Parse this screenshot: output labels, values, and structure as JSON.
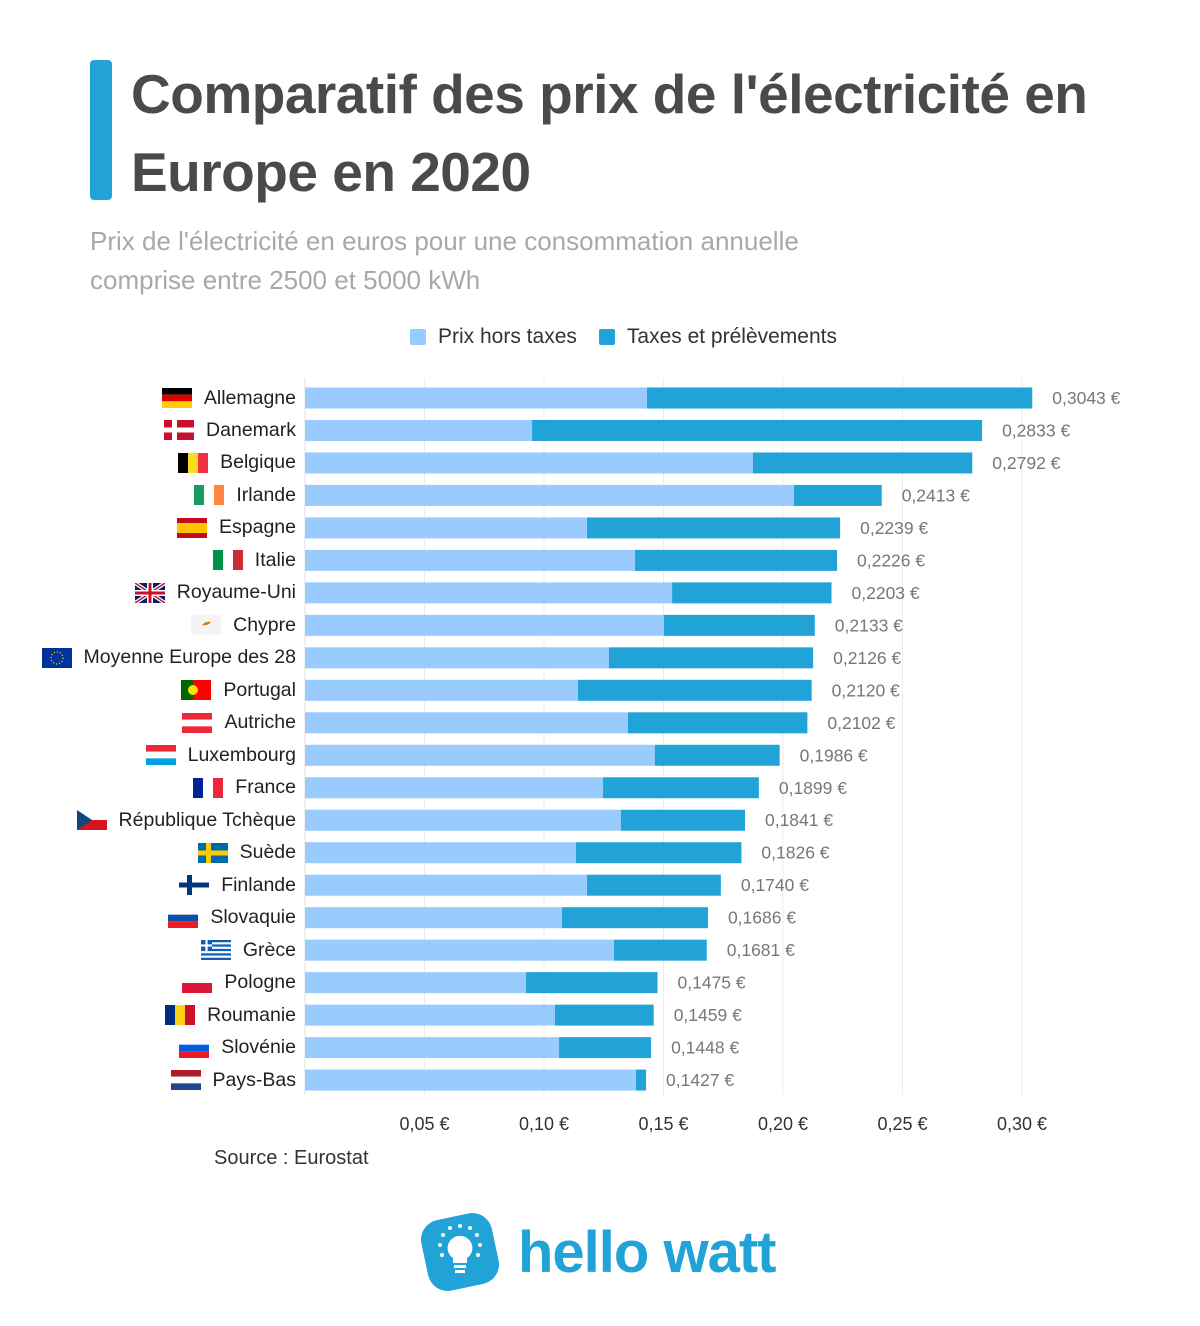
{
  "header": {
    "title": "Comparatif des prix de l'électricité en Europe en 2020",
    "subtitle": "Prix de l'électricité en euros pour une consommation annuelle comprise entre 2500 et 5000 kWh"
  },
  "chart_data": {
    "type": "bar",
    "orientation": "horizontal",
    "stacked": true,
    "title": "Comparatif des prix de l'électricité en Europe en 2020",
    "categories": [
      "Allemagne",
      "Danemark",
      "Belgique",
      "Irlande",
      "Espagne",
      "Italie",
      "Royaume-Uni",
      "Chypre",
      "Moyenne Europe des 28",
      "Portugal",
      "Autriche",
      "Luxembourg",
      "France",
      "République Tchèque",
      "Suède",
      "Finlande",
      "Slovaquie",
      "Grèce",
      "Pologne",
      "Roumanie",
      "Slovénie",
      "Pays-Bas"
    ],
    "series": [
      {
        "name": "Prix hors taxes",
        "color": "#99cbff",
        "values": [
          0.1431,
          0.095,
          0.1874,
          0.2046,
          0.118,
          0.1381,
          0.1536,
          0.1502,
          0.1272,
          0.1142,
          0.1351,
          0.1464,
          0.1247,
          0.1322,
          0.1134,
          0.118,
          0.1075,
          0.1293,
          0.0925,
          0.1046,
          0.1063,
          0.1385
        ]
      },
      {
        "name": "Taxes et prélèvements",
        "color": "#22a3d8",
        "values": [
          0.1612,
          0.1883,
          0.0918,
          0.0367,
          0.1059,
          0.0845,
          0.0667,
          0.0631,
          0.0854,
          0.0978,
          0.0751,
          0.0522,
          0.0652,
          0.0519,
          0.0692,
          0.056,
          0.0611,
          0.0388,
          0.055,
          0.0413,
          0.0385,
          0.0042
        ]
      }
    ],
    "totals": [
      0.3043,
      0.2833,
      0.2792,
      0.2413,
      0.2239,
      0.2226,
      0.2203,
      0.2133,
      0.2126,
      0.212,
      0.2102,
      0.1986,
      0.1899,
      0.1841,
      0.1826,
      0.174,
      0.1686,
      0.1681,
      0.1475,
      0.1459,
      0.1448,
      0.1427
    ],
    "data_labels": [
      "0,3043 €",
      "0,2833 €",
      "0,2792 €",
      "0,2413 €",
      "0,2239 €",
      "0,2226 €",
      "0,2203 €",
      "0,2133 €",
      "0,2126 €",
      "0,2120 €",
      "0,2102 €",
      "0,1986 €",
      "0,1899 €",
      "0,1841 €",
      "0,1826 €",
      "0,1740 €",
      "0,1686 €",
      "0,1681 €",
      "0,1475 €",
      "0,1459 €",
      "0,1448 €",
      "0,1427 €"
    ],
    "xlim": [
      0,
      0.32
    ],
    "x_ticks": [
      0.05,
      0.1,
      0.15,
      0.2,
      0.25,
      0.3
    ],
    "x_tick_labels": [
      "0,05 €",
      "0,10 €",
      "0,15 €",
      "0,20 €",
      "0,25 €",
      "0,30 €"
    ],
    "grid": true,
    "legend_position": "top",
    "xlabel": "",
    "ylabel": ""
  },
  "flags": [
    {
      "dir": "h",
      "colors": [
        "#000000",
        "#dd0000",
        "#ffce00"
      ]
    },
    {
      "dir": "nordic",
      "colors": [
        "#c8102e",
        "#ffffff"
      ]
    },
    {
      "dir": "v",
      "colors": [
        "#000000",
        "#fdda24",
        "#ef3340"
      ]
    },
    {
      "dir": "v",
      "colors": [
        "#169b62",
        "#ffffff",
        "#ff883e"
      ]
    },
    {
      "dir": "h3",
      "colors": [
        "#c60b1e",
        "#ffc400",
        "#c60b1e"
      ]
    },
    {
      "dir": "v",
      "colors": [
        "#009246",
        "#ffffff",
        "#ce2b37"
      ]
    },
    {
      "dir": "uk",
      "colors": [
        "#012169",
        "#ffffff",
        "#c8102e"
      ]
    },
    {
      "dir": "h",
      "colors": [
        "#ffffff",
        "#ffffff",
        "#ffffff"
      ]
    },
    {
      "dir": "eu",
      "colors": [
        "#003399",
        "#ffcc00"
      ]
    },
    {
      "dir": "v2",
      "colors": [
        "#006600",
        "#ff0000"
      ]
    },
    {
      "dir": "h",
      "colors": [
        "#ed2939",
        "#ffffff",
        "#ed2939"
      ]
    },
    {
      "dir": "h",
      "colors": [
        "#ed2939",
        "#ffffff",
        "#00a1de"
      ]
    },
    {
      "dir": "v",
      "colors": [
        "#002395",
        "#ffffff",
        "#ed2939"
      ]
    },
    {
      "dir": "cz",
      "colors": [
        "#ffffff",
        "#d7141a",
        "#11457e"
      ]
    },
    {
      "dir": "nordic",
      "colors": [
        "#006aa7",
        "#fecc00"
      ]
    },
    {
      "dir": "nordic",
      "colors": [
        "#ffffff",
        "#003580"
      ]
    },
    {
      "dir": "h",
      "colors": [
        "#ffffff",
        "#0b4ea2",
        "#ee1c25"
      ]
    },
    {
      "dir": "gr",
      "colors": [
        "#0d5eaf",
        "#ffffff"
      ]
    },
    {
      "dir": "h2",
      "colors": [
        "#ffffff",
        "#dc143c"
      ]
    },
    {
      "dir": "v",
      "colors": [
        "#002b7f",
        "#fcd116",
        "#ce1126"
      ]
    },
    {
      "dir": "h",
      "colors": [
        "#ffffff",
        "#005ce5",
        "#ed1c24"
      ]
    },
    {
      "dir": "h",
      "colors": [
        "#ae1c28",
        "#ffffff",
        "#21468b"
      ]
    }
  ],
  "footer": {
    "source": "Source : Eurostat",
    "brand": "hello watt",
    "brand_color": "#22a3d8"
  }
}
